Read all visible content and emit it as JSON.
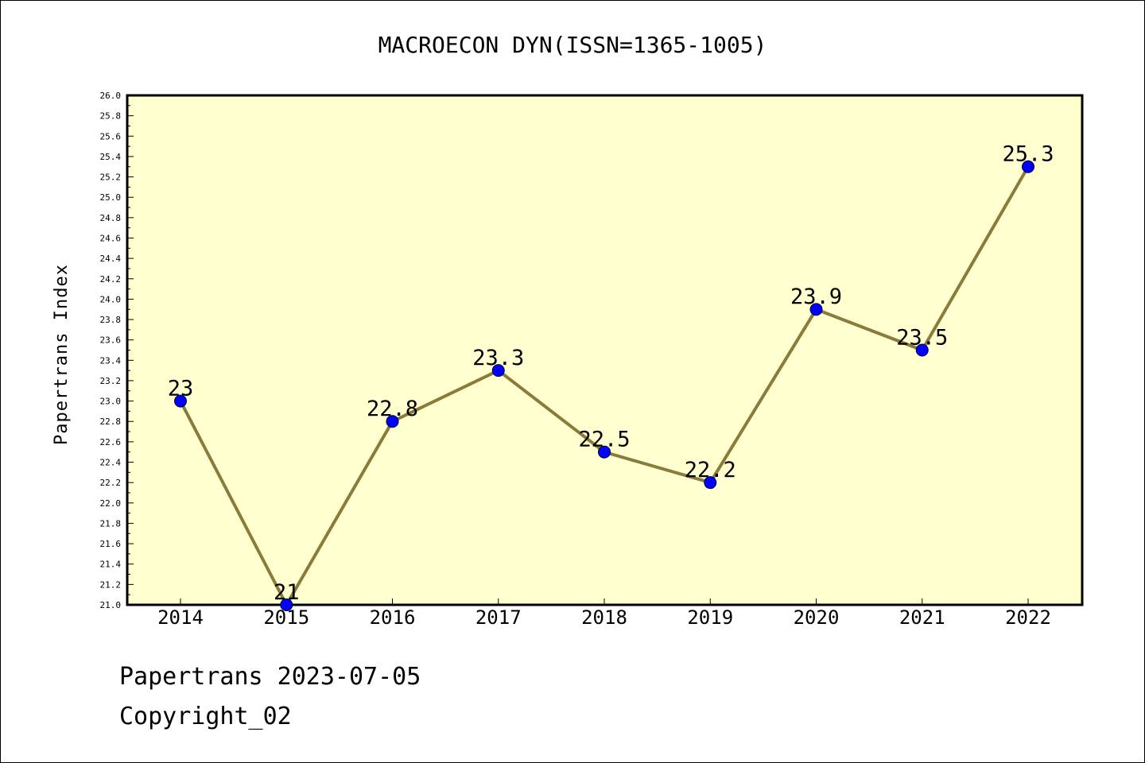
{
  "chart_data": {
    "type": "line",
    "title": "MACROECON DYN(ISSN=1365-1005)",
    "xlabel": "",
    "ylabel": "Papertrans Index",
    "categories": [
      "2014",
      "2015",
      "2016",
      "2017",
      "2018",
      "2019",
      "2020",
      "2021",
      "2022"
    ],
    "series": [
      {
        "values": [
          23,
          21,
          22.8,
          23.3,
          22.5,
          22.2,
          23.9,
          23.5,
          25.3
        ],
        "labels": [
          "23",
          "21",
          "22.8",
          "23.3",
          "22.5",
          "22.2",
          "23.9",
          "23.5",
          "25.3"
        ]
      }
    ],
    "ylim": [
      21.0,
      26.0
    ],
    "yticks": [
      "21.0",
      "21.2",
      "21.4",
      "21.6",
      "21.8",
      "22.0",
      "22.2",
      "22.4",
      "22.6",
      "22.8",
      "23.0",
      "23.2",
      "23.4",
      "23.6",
      "23.8",
      "24.0",
      "24.2",
      "24.4",
      "24.6",
      "24.8",
      "25.0",
      "25.2",
      "25.4",
      "25.6",
      "25.8",
      "26.0"
    ],
    "grid": false,
    "colors": {
      "plot_background": "#ffffd0",
      "line": "#8b7b3a",
      "marker": "#0000ff",
      "axis": "#000000"
    }
  },
  "footer": {
    "date_line": "Papertrans 2023-07-05",
    "copyright": "Copyright_02"
  }
}
